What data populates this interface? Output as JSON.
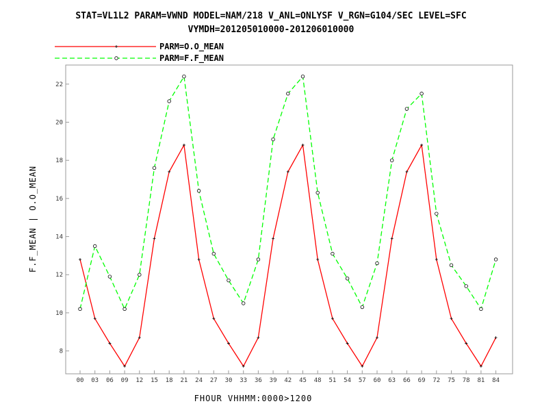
{
  "chart_data": {
    "type": "line",
    "title": "STAT=VL1L2 PARAM=VWND MODEL=NAM/218 V_ANL=ONLYSF V_RGN=G104/SEC LEVEL=SFC",
    "subtitle": "VYMDH=201205010000-201206010000",
    "xlabel": "FHOUR VHHMM:0000>1200",
    "ylabel": "F.F_MEAN | O.O_MEAN",
    "categories": [
      "00",
      "03",
      "06",
      "09",
      "12",
      "15",
      "18",
      "21",
      "24",
      "27",
      "30",
      "33",
      "36",
      "39",
      "42",
      "45",
      "48",
      "51",
      "54",
      "57",
      "60",
      "63",
      "66",
      "69",
      "72",
      "75",
      "78",
      "81",
      "84"
    ],
    "yticks": [
      8,
      10,
      12,
      14,
      16,
      18,
      20,
      22
    ],
    "ylim": [
      6.8,
      23.0
    ],
    "grid": false,
    "legend_position": "top-left",
    "series": [
      {
        "name": "PARM=O.O_MEAN",
        "color": "#ff0000",
        "style": "solid",
        "marker": "plus",
        "values": [
          12.8,
          9.7,
          8.4,
          7.2,
          8.7,
          13.9,
          17.4,
          18.8,
          12.8,
          9.7,
          8.4,
          7.2,
          8.7,
          13.9,
          17.4,
          18.8,
          12.8,
          9.7,
          8.4,
          7.2,
          8.7,
          13.9,
          17.4,
          18.8,
          12.8,
          9.7,
          8.4,
          7.2,
          8.7
        ]
      },
      {
        "name": "PARM=F.F_MEAN",
        "color": "#00ff00",
        "style": "dashed",
        "marker": "circle",
        "values": [
          10.2,
          13.5,
          11.9,
          10.2,
          12.0,
          17.6,
          21.1,
          22.4,
          16.4,
          13.1,
          11.7,
          10.5,
          12.8,
          19.1,
          21.5,
          22.4,
          16.3,
          13.1,
          11.8,
          10.3,
          12.6,
          18.0,
          20.7,
          21.5,
          15.2,
          12.5,
          11.4,
          10.2,
          12.8
        ]
      }
    ]
  }
}
